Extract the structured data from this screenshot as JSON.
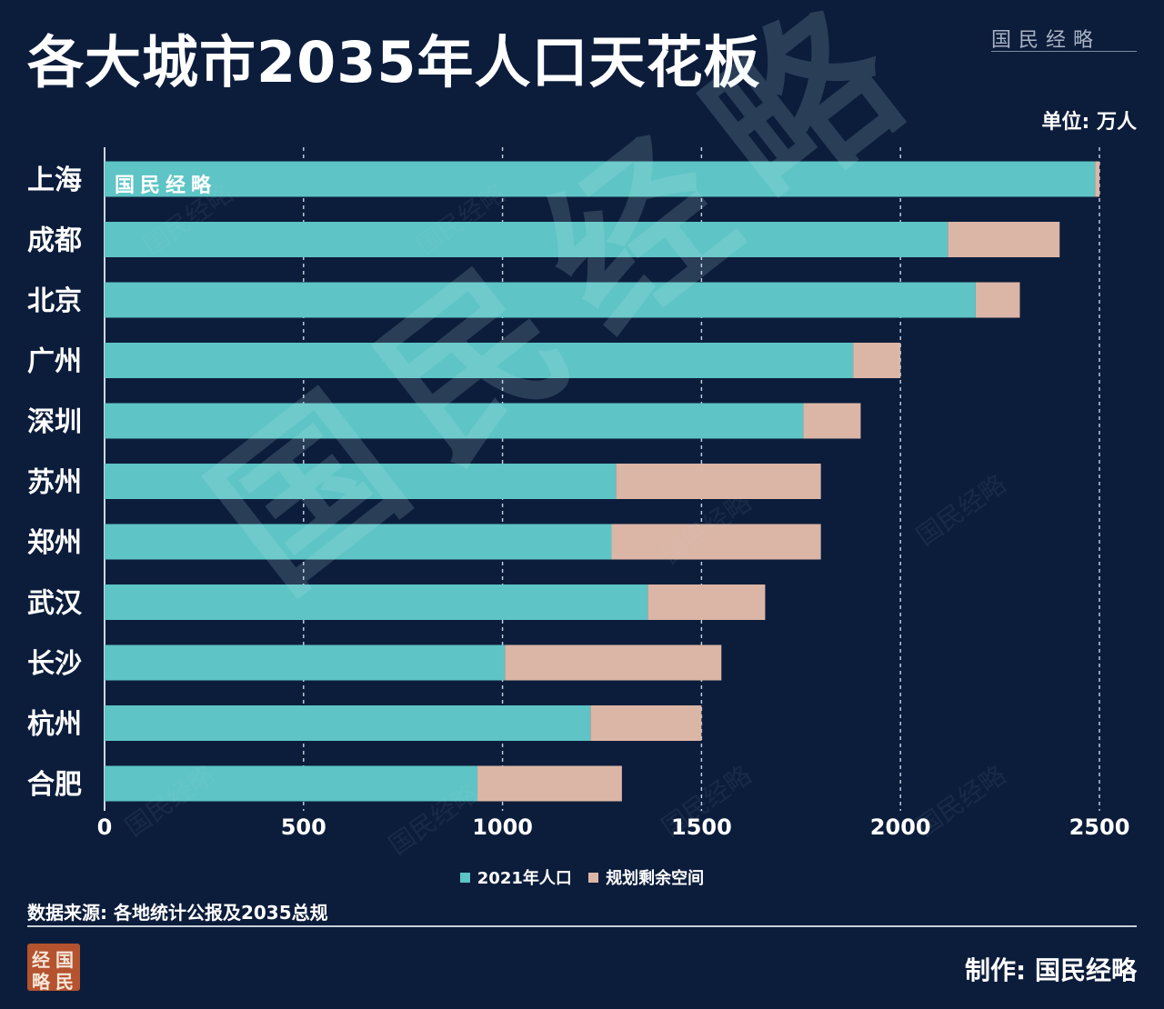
{
  "title": "各大城市2035年人口天花板",
  "brand": "国民经略",
  "unit_label": "单位: 万人",
  "source": "数据来源: 各地统计公报及2035总规",
  "maker": "制作: 国民经略",
  "stamp": [
    "国",
    "民",
    "经",
    "略"
  ],
  "colors": {
    "pop2021": "#5ec4c5",
    "remaining": "#dbb6a6",
    "background": "#0c1d3b"
  },
  "chart_data": {
    "type": "bar",
    "orientation": "horizontal",
    "stacked": true,
    "categories": [
      "上海",
      "成都",
      "北京",
      "广州",
      "深圳",
      "苏州",
      "郑州",
      "武汉",
      "长沙",
      "杭州",
      "合肥"
    ],
    "series": [
      {
        "name": "2021年人口",
        "values": [
          2489,
          2119,
          2189,
          1881,
          1756,
          1285,
          1274,
          1365,
          1006,
          1221,
          937
        ]
      },
      {
        "name": "规划剩余空间",
        "values": [
          11,
          281,
          111,
          119,
          144,
          515,
          526,
          295,
          544,
          279,
          363
        ]
      }
    ],
    "xlim": [
      0,
      2500
    ],
    "xticks": [
      0,
      500,
      1000,
      1500,
      2000,
      2500
    ],
    "grid": true,
    "legend_position": "bottom"
  }
}
